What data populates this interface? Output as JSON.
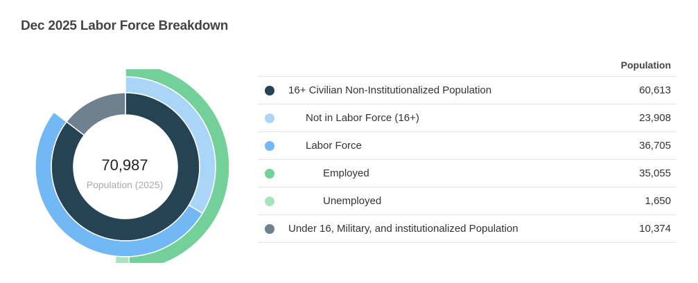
{
  "title": "Dec 2025 Labor Force Breakdown",
  "center": {
    "value": "70,987",
    "label": "Population (2025)"
  },
  "legend": {
    "header": "Population",
    "rows": [
      {
        "label": "16+ Civilian Non-Institutionalized Population",
        "value": "60,613",
        "color": "#264354",
        "level": 0
      },
      {
        "label": "Not in Labor Force (16+)",
        "value": "23,908",
        "color": "#a9d6f8",
        "level": 1
      },
      {
        "label": "Labor Force",
        "value": "36,705",
        "color": "#72b8f4",
        "level": 1
      },
      {
        "label": "Employed",
        "value": "35,055",
        "color": "#72d098",
        "level": 2
      },
      {
        "label": "Unemployed",
        "value": "1,650",
        "color": "#a7e3bf",
        "level": 2
      },
      {
        "label": "Under 16, Military, and institutionalized Population",
        "value": "10,374",
        "color": "#6f818f",
        "level": 0
      }
    ]
  },
  "chart_data": {
    "type": "pie",
    "total": 70987,
    "rings": [
      {
        "slices": [
          {
            "name": "16+ Civilian Non-Institutionalized Population",
            "value": 60613,
            "color": "#264354"
          },
          {
            "name": "Under 16, Military, and institutionalized Population",
            "value": 10374,
            "color": "#6f818f"
          }
        ]
      },
      {
        "slices": [
          {
            "name": "Not in Labor Force (16+)",
            "value": 23908,
            "color": "#a9d6f8"
          },
          {
            "name": "Labor Force",
            "value": 36705,
            "color": "#72b8f4"
          }
        ]
      },
      {
        "slices": [
          {
            "name": "Employed",
            "value": 35055,
            "color": "#72d098"
          },
          {
            "name": "Unemployed",
            "value": 1650,
            "color": "#a7e3bf"
          }
        ]
      }
    ]
  }
}
